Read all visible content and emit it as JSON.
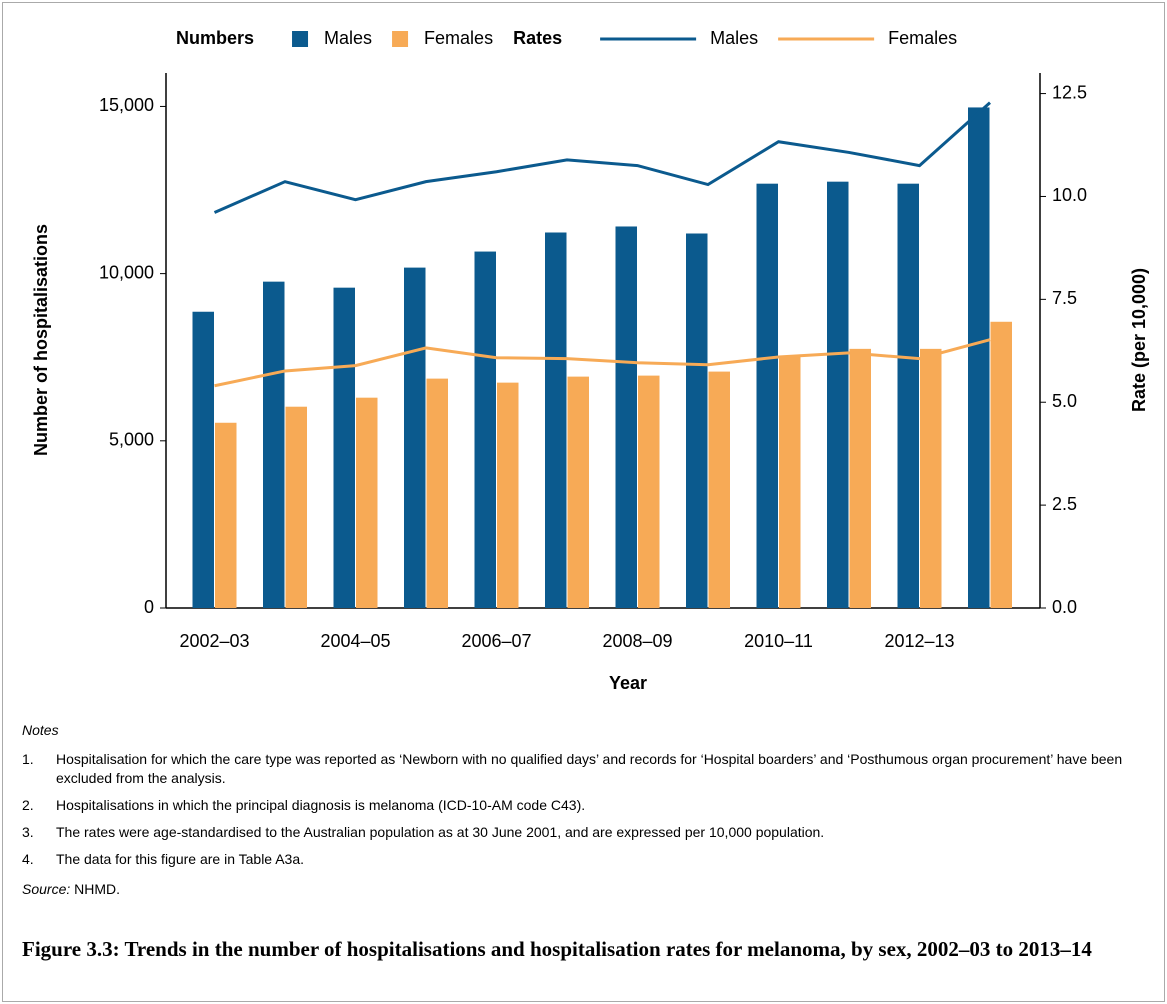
{
  "chart_data": {
    "type": "bar",
    "x_label": "Year",
    "y_label": "Number of hospitalisations",
    "y2_label": "Rate (per 10,000)",
    "categories": [
      "2002–03",
      null,
      "2004–05",
      null,
      "2006–07",
      null,
      "2008–09",
      null,
      "2010–11",
      null,
      "2012–13",
      null
    ],
    "series": [
      {
        "name": "Males",
        "group": "Numbers",
        "type": "bar",
        "color": "#0b5a8e",
        "values": [
          8860,
          9760,
          9580,
          10180,
          10660,
          11230,
          11410,
          11200,
          12690,
          12750,
          12690,
          14970
        ]
      },
      {
        "name": "Females",
        "type": "bar",
        "color": "#f7aa56",
        "values": [
          5540,
          6020,
          6290,
          6860,
          6740,
          6920,
          6950,
          7070,
          7510,
          7750,
          7750,
          8560
        ]
      },
      {
        "name": "Males",
        "group": "Rates",
        "type": "line",
        "axis": "y2",
        "color": "#0b5a8e",
        "values": [
          9.61,
          10.36,
          9.92,
          10.36,
          10.6,
          10.89,
          10.75,
          10.29,
          11.33,
          11.07,
          10.75,
          12.28
        ]
      },
      {
        "name": "Females",
        "type": "line",
        "axis": "y2",
        "color": "#f7aa56",
        "values": [
          5.4,
          5.76,
          5.89,
          6.32,
          6.08,
          6.06,
          5.96,
          5.91,
          6.1,
          6.2,
          6.06,
          6.52
        ]
      }
    ],
    "ylim": [
      0,
      16000
    ],
    "yticks": [
      0,
      {
        "value": 5000,
        "label": "5,000"
      },
      {
        "value": 10000,
        "label": "10,000"
      },
      {
        "value": 15000,
        "label": "15,000"
      }
    ],
    "y2lim": [
      0,
      13
    ],
    "y2ticks": [
      {
        "value": 0,
        "label": "0.0"
      },
      2.5,
      {
        "value": 5,
        "label": "5.0"
      },
      7.5,
      {
        "value": 10,
        "label": "10.0"
      },
      12.5
    ],
    "legend": "top"
  },
  "notes": {
    "heading": "Notes",
    "items": [
      {
        "number": "1.",
        "text": "Hospitalisation for which the care type was reported as ‘Newborn with no qualified days’ and records for ‘Hospital boarders’ and ‘Posthumous organ procurement’ have been excluded from the analysis."
      },
      {
        "number": "2.",
        "text": "Hospitalisations in which the principal diagnosis is melanoma (ICD-10-AM code C43)."
      },
      {
        "number": "3.",
        "text": "The rates were age-standardised to the Australian population as at 30 June 2001, and are expressed per 10,000 population."
      },
      {
        "number": "4.",
        "text": "The data for this figure are in Table A3a."
      }
    ]
  },
  "source": {
    "label": "Source:",
    "text": "NHMD."
  },
  "caption": "Figure 3.3: Trends in the number of hospitalisations and hospitalisation rates for melanoma, by sex, 2002–03 to 2013–14"
}
